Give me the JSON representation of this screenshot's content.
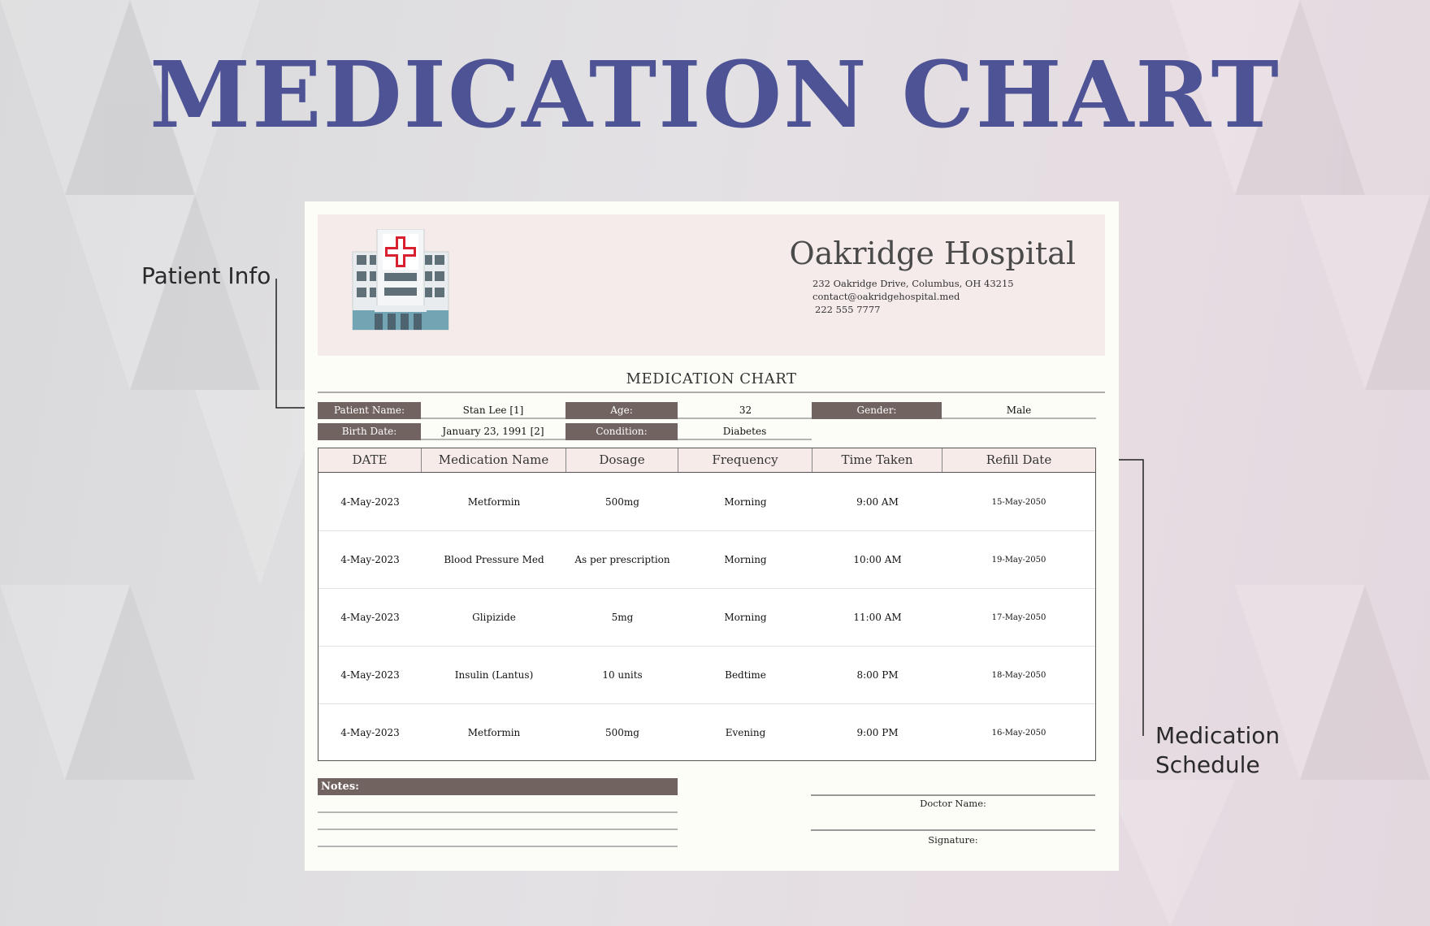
{
  "banner_title": "MEDICATION CHART",
  "callouts": {
    "patient_info": "Patient Info",
    "medication_schedule": "Medication\nSchedule"
  },
  "hospital": {
    "name": "Oakridge Hospital",
    "address": "232 Oakridge Drive, Columbus, OH 43215",
    "email": "contact@oakridgehospital.med",
    "phone": "222 555 7777",
    "logo_icon": "hospital-building-icon"
  },
  "document_title": "MEDICATION CHART",
  "patient": {
    "name_label": "Patient Name:",
    "name": "Stan Lee [1]",
    "age_label": "Age:",
    "age": "32",
    "gender_label": "Gender:",
    "gender": "Male",
    "birth_label": "Birth Date:",
    "birth_date": "January 23, 1991 [2]",
    "condition_label": "Condition:",
    "condition": "Diabetes"
  },
  "table": {
    "headers": [
      "DATE",
      "Medication Name",
      "Dosage",
      "Frequency",
      "Time Taken",
      "Refill Date"
    ],
    "rows": [
      [
        "4-May-2023",
        "Metformin",
        "500mg",
        "Morning",
        "9:00 AM",
        "15-May-2050"
      ],
      [
        "4-May-2023",
        "Blood Pressure Med",
        "As per prescription",
        "Morning",
        "10:00 AM",
        "19-May-2050"
      ],
      [
        "4-May-2023",
        "Glipizide",
        "5mg",
        "Morning",
        "11:00 AM",
        "17-May-2050"
      ],
      [
        "4-May-2023",
        "Insulin (Lantus)",
        "10 units",
        "Bedtime",
        "8:00 PM",
        "18-May-2050"
      ],
      [
        "4-May-2023",
        "Metformin",
        "500mg",
        "Evening",
        "9:00 PM",
        "16-May-2050"
      ]
    ]
  },
  "footer": {
    "notes_label": "Notes:",
    "doctor_label": "Doctor Name:",
    "signature_label": "Signature:"
  },
  "colors": {
    "banner": "#4e5396",
    "label_fill": "#716360",
    "header_band": "#f5ebea",
    "cross_red": "#d8202f"
  }
}
